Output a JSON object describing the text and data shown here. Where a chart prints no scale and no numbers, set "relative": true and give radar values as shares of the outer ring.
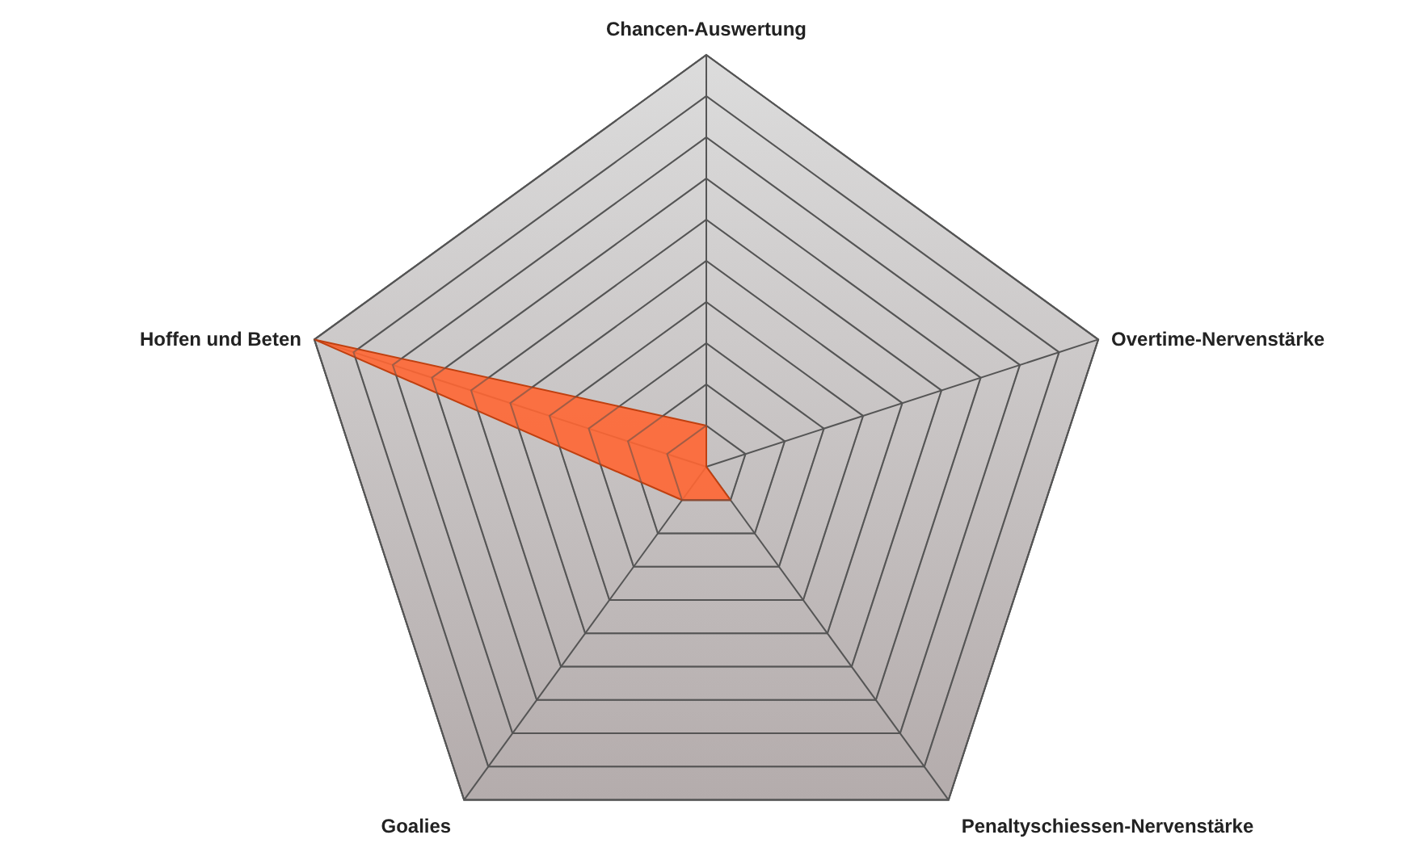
{
  "chart_data": {
    "type": "radar",
    "relative": true,
    "grid": true,
    "categories": [
      "Chancen-Auswertung",
      "Overtime-Nervenstärke",
      "Penaltyschiessen-Nervenstärke",
      "Goalies",
      "Hoffen und Beten"
    ],
    "series": [
      {
        "color": "#ff6633",
        "values": [
          0.1,
          0,
          0.1,
          0.1,
          1
        ]
      }
    ]
  }
}
